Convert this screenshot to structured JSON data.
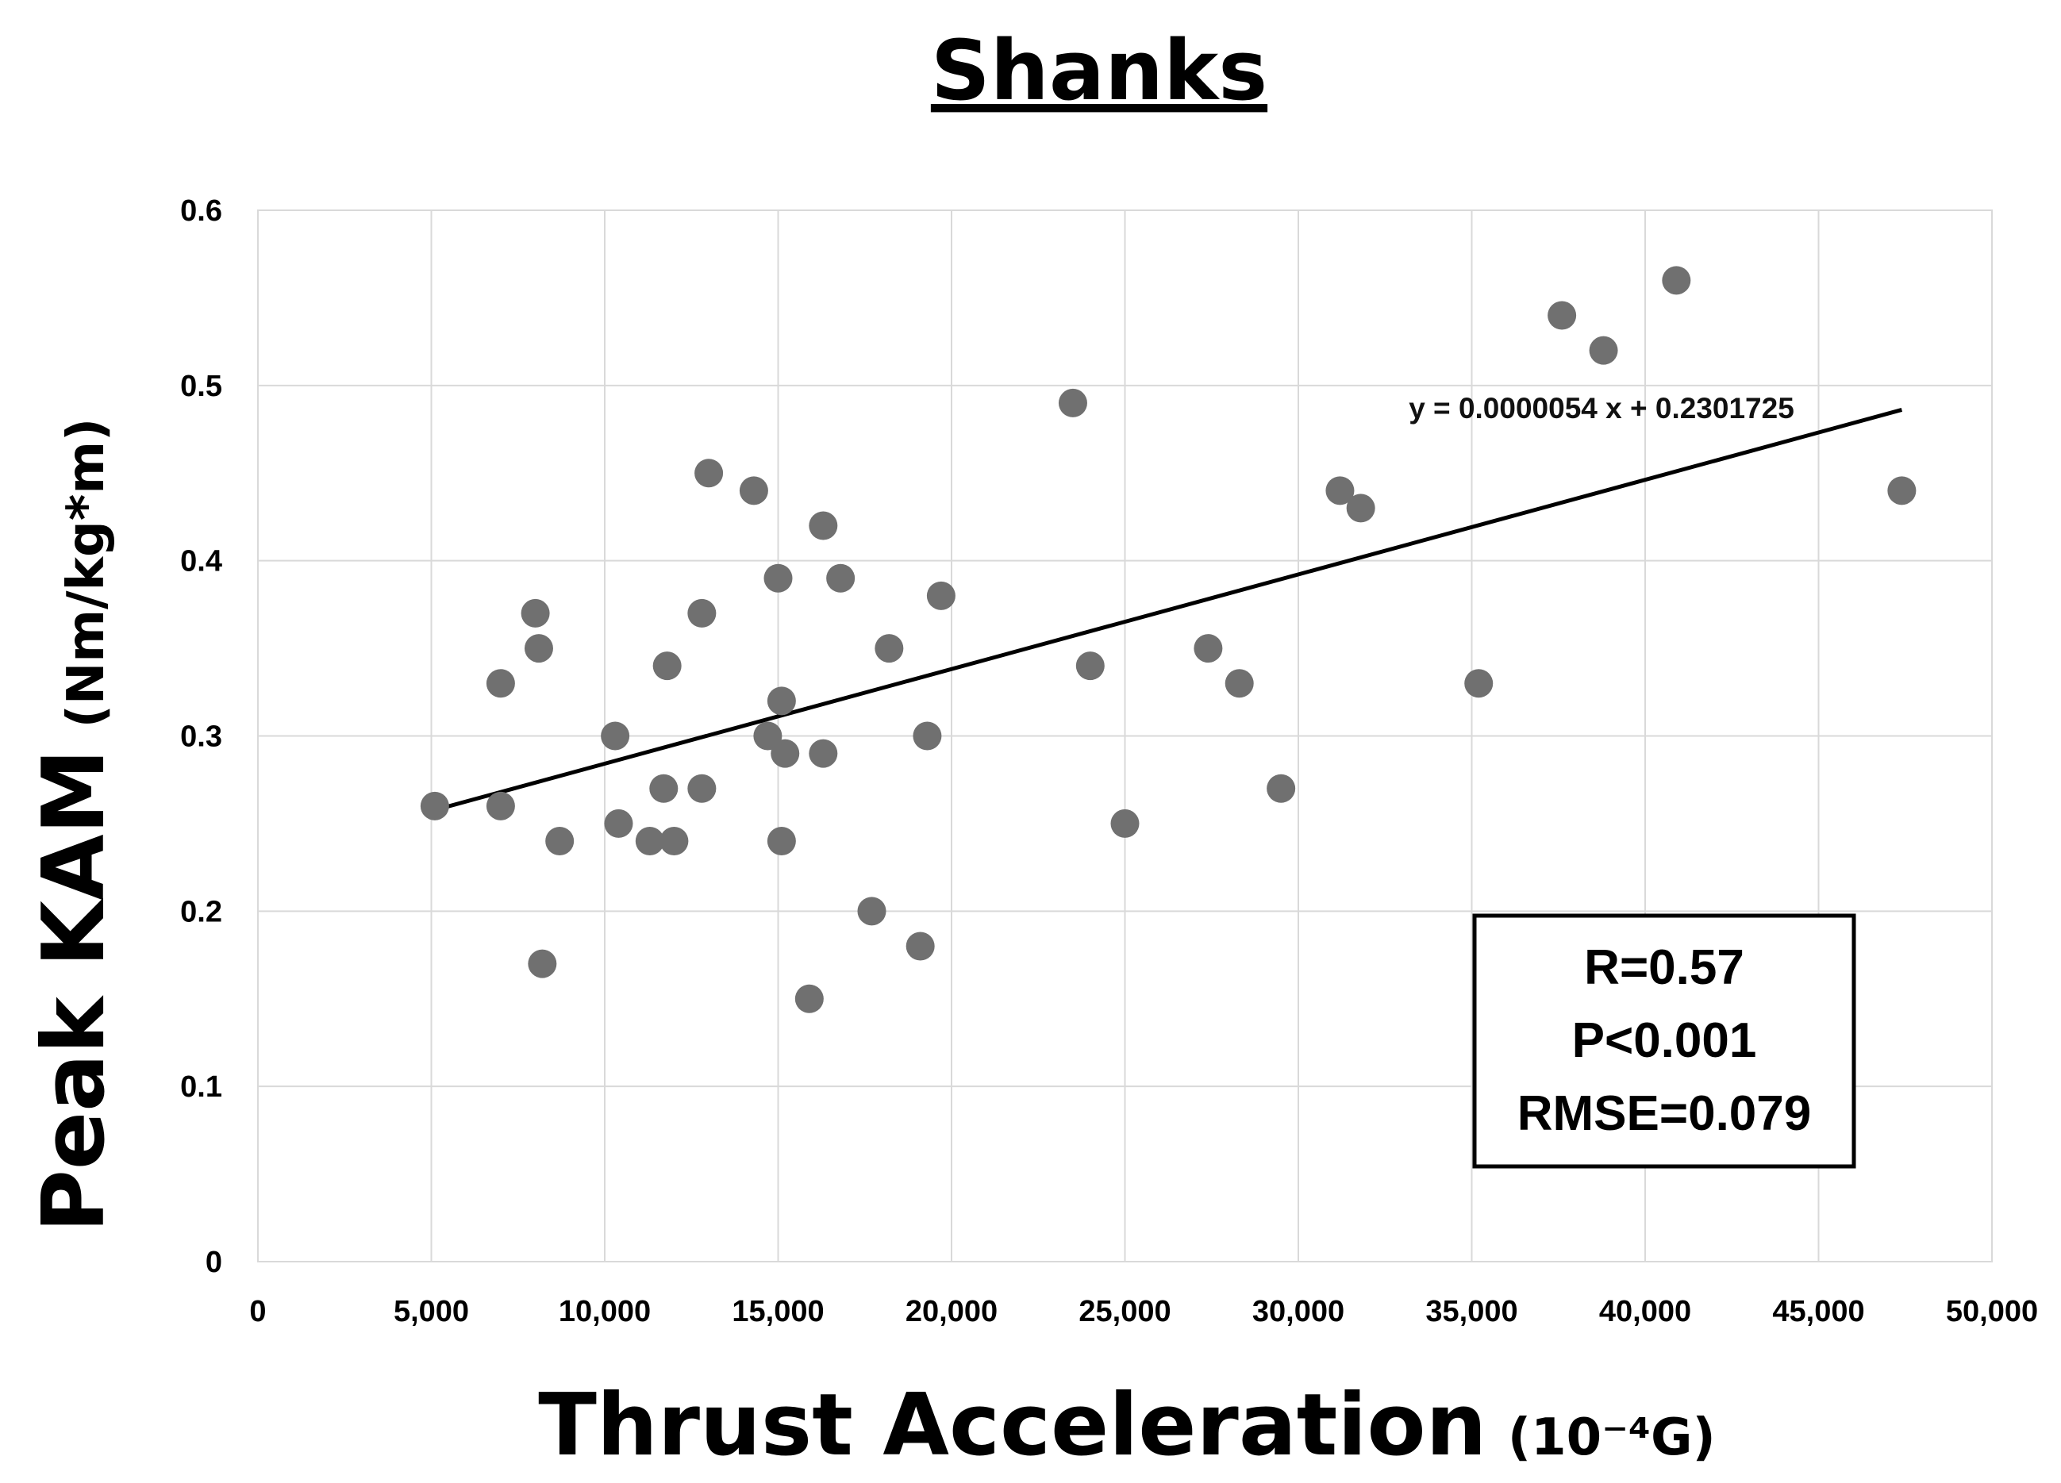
{
  "chart_data": {
    "type": "scatter",
    "title": "Shanks",
    "xlabel": "Thrust Acceleration",
    "xlabel_unit": "(10⁻⁴G)",
    "ylabel": "Peak KAM",
    "ylabel_unit": "(Nm/kg*m)",
    "xlim": [
      0,
      50000
    ],
    "ylim": [
      0,
      0.6
    ],
    "x_ticks": [
      0,
      5000,
      10000,
      15000,
      20000,
      25000,
      30000,
      35000,
      40000,
      45000,
      50000
    ],
    "x_tick_labels": [
      "0",
      "5,000",
      "10,000",
      "15,000",
      "20,000",
      "25,000",
      "30,000",
      "35,000",
      "40,000",
      "45,000",
      "50,000"
    ],
    "y_ticks": [
      0,
      0.1,
      0.2,
      0.3,
      0.4,
      0.5,
      0.6
    ],
    "y_tick_labels": [
      "0",
      "0.1",
      "0.2",
      "0.3",
      "0.4",
      "0.5",
      "0.6"
    ],
    "grid": true,
    "marker_color": "#707070",
    "points": [
      [
        5100,
        0.26
      ],
      [
        7000,
        0.33
      ],
      [
        7000,
        0.26
      ],
      [
        8000,
        0.37
      ],
      [
        8100,
        0.35
      ],
      [
        8200,
        0.17
      ],
      [
        8700,
        0.24
      ],
      [
        10300,
        0.3
      ],
      [
        10400,
        0.25
      ],
      [
        11300,
        0.24
      ],
      [
        11700,
        0.27
      ],
      [
        11800,
        0.34
      ],
      [
        12000,
        0.24
      ],
      [
        12800,
        0.37
      ],
      [
        12800,
        0.27
      ],
      [
        13000,
        0.45
      ],
      [
        14300,
        0.44
      ],
      [
        14700,
        0.3
      ],
      [
        15000,
        0.39
      ],
      [
        15100,
        0.32
      ],
      [
        15200,
        0.29
      ],
      [
        15100,
        0.24
      ],
      [
        15900,
        0.15
      ],
      [
        16300,
        0.42
      ],
      [
        16300,
        0.29
      ],
      [
        16800,
        0.39
      ],
      [
        17700,
        0.2
      ],
      [
        18200,
        0.35
      ],
      [
        19100,
        0.18
      ],
      [
        19300,
        0.3
      ],
      [
        19700,
        0.38
      ],
      [
        23500,
        0.49
      ],
      [
        24000,
        0.34
      ],
      [
        25000,
        0.25
      ],
      [
        27400,
        0.35
      ],
      [
        28300,
        0.33
      ],
      [
        29500,
        0.27
      ],
      [
        31200,
        0.44
      ],
      [
        31800,
        0.43
      ],
      [
        35200,
        0.33
      ],
      [
        37600,
        0.54
      ],
      [
        38800,
        0.52
      ],
      [
        40900,
        0.56
      ],
      [
        47400,
        0.44
      ]
    ],
    "trendline": {
      "slope": 5.4e-06,
      "intercept": 0.2301725,
      "x_range": [
        5100,
        47400
      ],
      "equation_label": "y = 0.0000054 x + 0.2301725"
    },
    "annotations": {
      "r_label": "R=0.57",
      "p_label": "P<0.001",
      "rmse_label": "RMSE=0.079"
    }
  }
}
